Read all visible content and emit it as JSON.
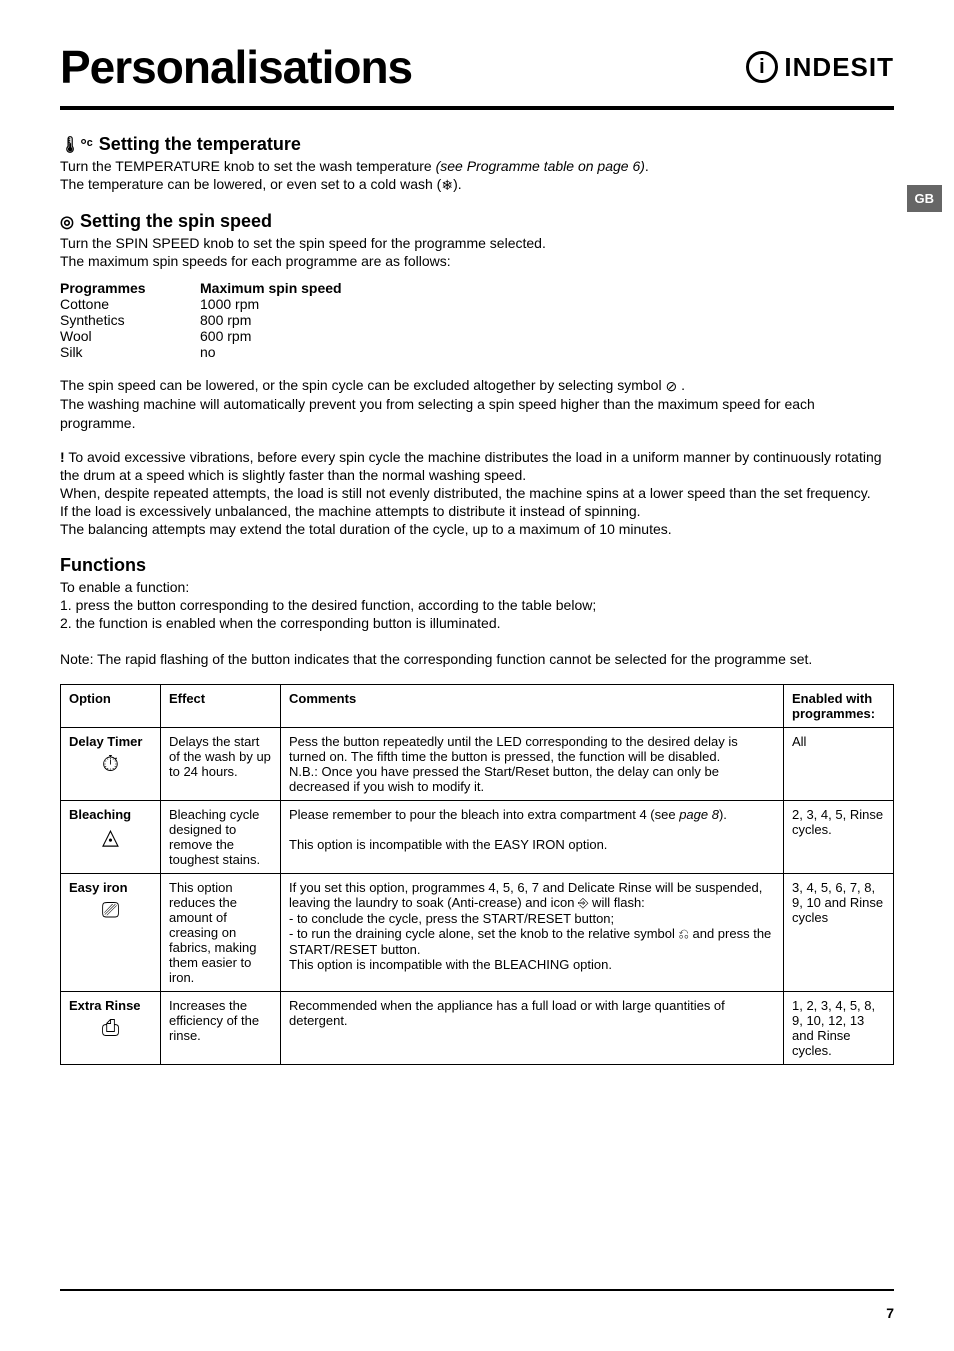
{
  "header": {
    "title": "Personalisations",
    "brand_icon_text": "i",
    "brand_text": "INDESIT"
  },
  "gb_tab": "GB",
  "temperature": {
    "heading": "Setting the temperature",
    "line1_a": "Turn the TEMPERATURE knob to set the wash temperature ",
    "line1_b": "(see Programme table on page 6)",
    "line1_c": ".",
    "line2_a": "The temperature can be lowered, or even set to a cold wash (",
    "line2_b": ").",
    "cold_icon": "❄"
  },
  "spin": {
    "heading": "Setting the spin speed",
    "line1": "Turn the SPIN SPEED knob to set the spin speed for the programme selected.",
    "line2": "The maximum spin speeds for each programme are as follows:",
    "table": {
      "head1": "Programmes",
      "head2": "Maximum spin speed",
      "rows": [
        {
          "p": "Cottone",
          "s": "1000 rpm"
        },
        {
          "p": "Synthetics",
          "s": "800 rpm"
        },
        {
          "p": "Wool",
          "s": "600 rpm"
        },
        {
          "p": "Silk",
          "s": "no"
        }
      ]
    },
    "para2_a": "The spin speed can be lowered, or the spin cycle can be excluded altogether by selecting symbol ",
    "nospin_icon": "⊘",
    "para2_b": " .",
    "para2_c": "The washing machine will automatically prevent you from selecting a spin speed higher than the maximum speed for each programme.",
    "warn1_a": "To avoid excessive vibrations, before every spin cycle the machine distributes the load in a uniform manner by continuously rotating the drum at a speed which is slightly faster than the normal washing speed.",
    "warn1_b": "When, despite repeated attempts, the load is still not evenly distributed, the machine spins at a lower speed than the set frequency.",
    "warn1_c": "If the load is excessively unbalanced, the machine attempts to distribute it instead of spinning.",
    "warn1_d": "The balancing attempts may extend the total duration of the cycle, up to a maximum of 10 minutes."
  },
  "functions": {
    "heading": "Functions",
    "intro": "To enable a function:",
    "step1": "1. press the button corresponding to the desired function, according to the table below;",
    "step2": "2. the function is enabled when the corresponding button is illuminated.",
    "note": "Note: The rapid flashing of the button indicates that the corresponding function cannot be selected for the programme set."
  },
  "options_table": {
    "headers": {
      "option": "Option",
      "effect": "Effect",
      "comments": "Comments",
      "enabled": "Enabled with programmes:"
    },
    "rows": [
      {
        "name": "Delay Timer",
        "icon": "⏱",
        "effect": "Delays the start of the wash by up to 24 hours.",
        "comments": "Pess the button repeatedly until the LED corresponding to the desired delay is turned on. The fifth time the button is pressed, the function will be disabled.\nN.B.: Once you have pressed the Start/Reset button, the delay can only be decreased if you wish to modify it.",
        "enabled": "All"
      },
      {
        "name": "Bleaching",
        "icon": "◬",
        "effect": "Bleaching cycle designed to remove the toughest stains.",
        "comments_a": "Please remember to pour the bleach into extra compartment 4 (see ",
        "comments_b": "page 8",
        "comments_c": ").\n\nThis option is incompatible with the EASY IRON option.",
        "enabled": "2, 3, 4, 5, Rinse cycles."
      },
      {
        "name": "Easy iron",
        "icon": "⎚",
        "effect": "This option reduces the amount of creasing on fabrics, making them easier to iron.",
        "comments": "If you set this option, programmes 4, 5, 6, 7 and Delicate Rinse will be suspended, leaving the laundry to soak (Anti-crease) and icon ⎆ will flash:\n- to conclude the cycle, press the START/RESET button;\n- to run the draining cycle alone, set the knob to the relative symbol ⎌ and press the START/RESET button.\nThis option is incompatible with the BLEACHING option.",
        "enabled": "3, 4, 5, 6, 7, 8, 9, 10 and Rinse cycles"
      },
      {
        "name": "Extra Rinse",
        "icon": "⎙",
        "effect": "Increases the efficiency of the rinse.",
        "comments": "Recommended when the appliance has a full load or with large quantities of detergent.",
        "enabled": "1, 2, 3, 4, 5, 8, 9, 10, 12, 13 and Rinse cycles."
      }
    ]
  },
  "page_number": "7"
}
